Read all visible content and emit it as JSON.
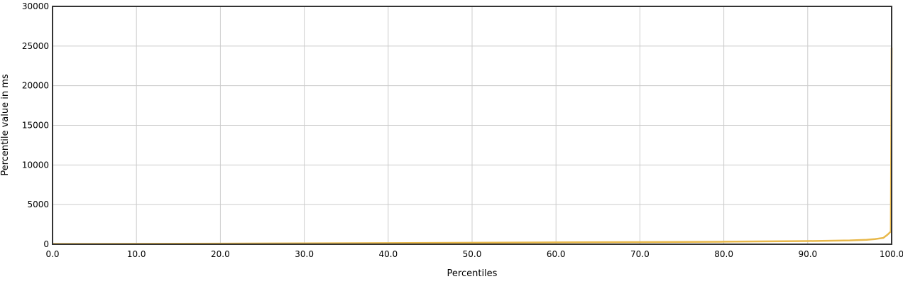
{
  "chart_data": {
    "type": "line",
    "xlabel": "Percentiles",
    "ylabel": "Percentile value in ms",
    "xlim": [
      0,
      100
    ],
    "ylim": [
      0,
      30000
    ],
    "x_ticks": [
      "0.0",
      "10.0",
      "20.0",
      "30.0",
      "40.0",
      "50.0",
      "60.0",
      "70.0",
      "80.0",
      "90.0",
      "100.0"
    ],
    "y_ticks": [
      "0",
      "5000",
      "10000",
      "15000",
      "20000",
      "25000",
      "30000"
    ],
    "grid": true,
    "legend": "none",
    "series": [
      {
        "color": "#e8b84a",
        "x": [
          0,
          10,
          20,
          30,
          40,
          50,
          60,
          70,
          80,
          90,
          95,
          97,
          98,
          99,
          99.5,
          99.9,
          100
        ],
        "y": [
          40,
          60,
          80,
          110,
          150,
          190,
          230,
          270,
          320,
          400,
          480,
          560,
          650,
          800,
          1200,
          1600,
          24800
        ]
      }
    ]
  }
}
